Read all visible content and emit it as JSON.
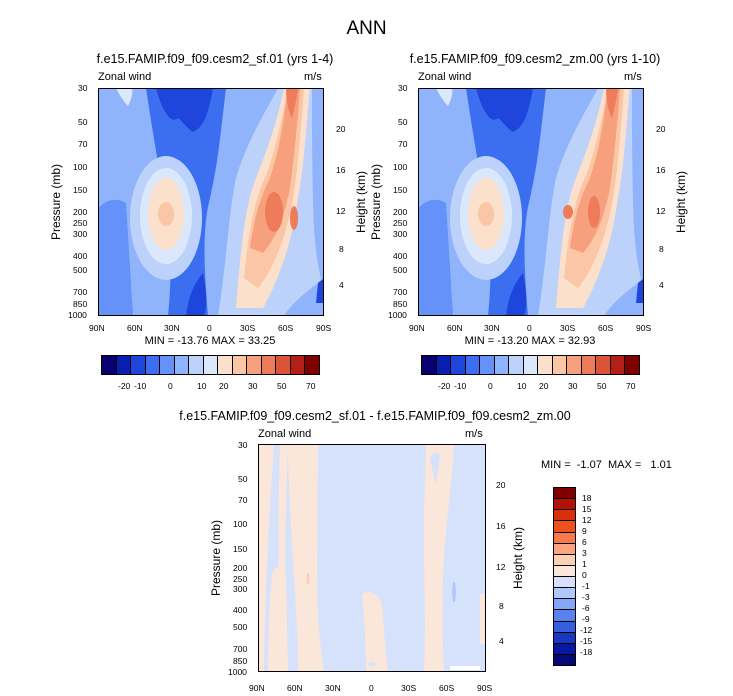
{
  "figure": {
    "title": "ANN"
  },
  "chart_data": [
    {
      "type": "heatmap",
      "title": "f.e15.FAMIP.f09_f09.cesm2_sf.01 (yrs 1-4)",
      "left_label": "Zonal wind",
      "right_label": "m/s",
      "ylabel": "Pressure (mb)",
      "ylabel_right": "Height (km)",
      "x_ticks": [
        "90N",
        "60N",
        "30N",
        "0",
        "30S",
        "60S",
        "90S"
      ],
      "y_ticks": [
        "30",
        "50",
        "70",
        "100",
        "150",
        "200",
        "250",
        "300",
        "400",
        "500",
        "700",
        "850",
        "1000"
      ],
      "y2_ticks": [
        "20",
        "16",
        "12",
        "8",
        "4"
      ],
      "stats": "MIN = -13.76  MAX = 33.25",
      "colorbar_labels": [
        "-20",
        "-10",
        "0",
        "10",
        "20",
        "30",
        "50",
        "70"
      ]
    },
    {
      "type": "heatmap",
      "title": "f.e15.FAMIP.f09_f09.cesm2_zm.00 (yrs 1-10)",
      "left_label": "Zonal wind",
      "right_label": "m/s",
      "ylabel": "Pressure (mb)",
      "ylabel_right": "Height (km)",
      "x_ticks": [
        "90N",
        "60N",
        "30N",
        "0",
        "30S",
        "60S",
        "90S"
      ],
      "y_ticks": [
        "30",
        "50",
        "70",
        "100",
        "150",
        "200",
        "250",
        "300",
        "400",
        "500",
        "700",
        "850",
        "1000"
      ],
      "y2_ticks": [
        "20",
        "16",
        "12",
        "8",
        "4"
      ],
      "stats": "MIN = -13.20  MAX = 32.93",
      "colorbar_labels": [
        "-20",
        "-10",
        "0",
        "10",
        "20",
        "30",
        "50",
        "70"
      ]
    },
    {
      "type": "heatmap",
      "title": "f.e15.FAMIP.f09_f09.cesm2_sf.01 - f.e15.FAMIP.f09_f09.cesm2_zm.00",
      "left_label": "Zonal wind",
      "right_label": "m/s",
      "ylabel": "Pressure (mb)",
      "ylabel_right": "Height (km)",
      "x_ticks": [
        "90N",
        "60N",
        "30N",
        "0",
        "30S",
        "60S",
        "90S"
      ],
      "y_ticks": [
        "30",
        "50",
        "70",
        "100",
        "150",
        "200",
        "250",
        "300",
        "400",
        "500",
        "700",
        "850",
        "1000"
      ],
      "y2_ticks": [
        "20",
        "16",
        "12",
        "8",
        "4"
      ],
      "stats": "MIN =  -1.07  MAX =   1.01",
      "colorbar_labels": [
        "18",
        "15",
        "12",
        "9",
        "6",
        "3",
        "1",
        "0",
        "-1",
        "-3",
        "-6",
        "-9",
        "-12",
        "-15",
        "-18"
      ]
    }
  ],
  "colors": {
    "abs_scale": [
      "#08006e",
      "#0a1fb0",
      "#1e46dc",
      "#3c6ef0",
      "#6492f8",
      "#90b4fb",
      "#bcd2fb",
      "#dbe8fb",
      "#fbe0cc",
      "#fbc6a6",
      "#f6a07e",
      "#ee7c5a",
      "#dc5436",
      "#b42016",
      "#800000"
    ],
    "diff_scale": [
      "#800000",
      "#b41008",
      "#d8300a",
      "#f0501e",
      "#f87a4c",
      "#fba47e",
      "#fbd0b4",
      "#fbe6da",
      "#d6e2fb",
      "#b0c8fb",
      "#84a6f6",
      "#5a82ee",
      "#3460e0",
      "#1838c2",
      "#0818a0",
      "#060a78"
    ]
  }
}
